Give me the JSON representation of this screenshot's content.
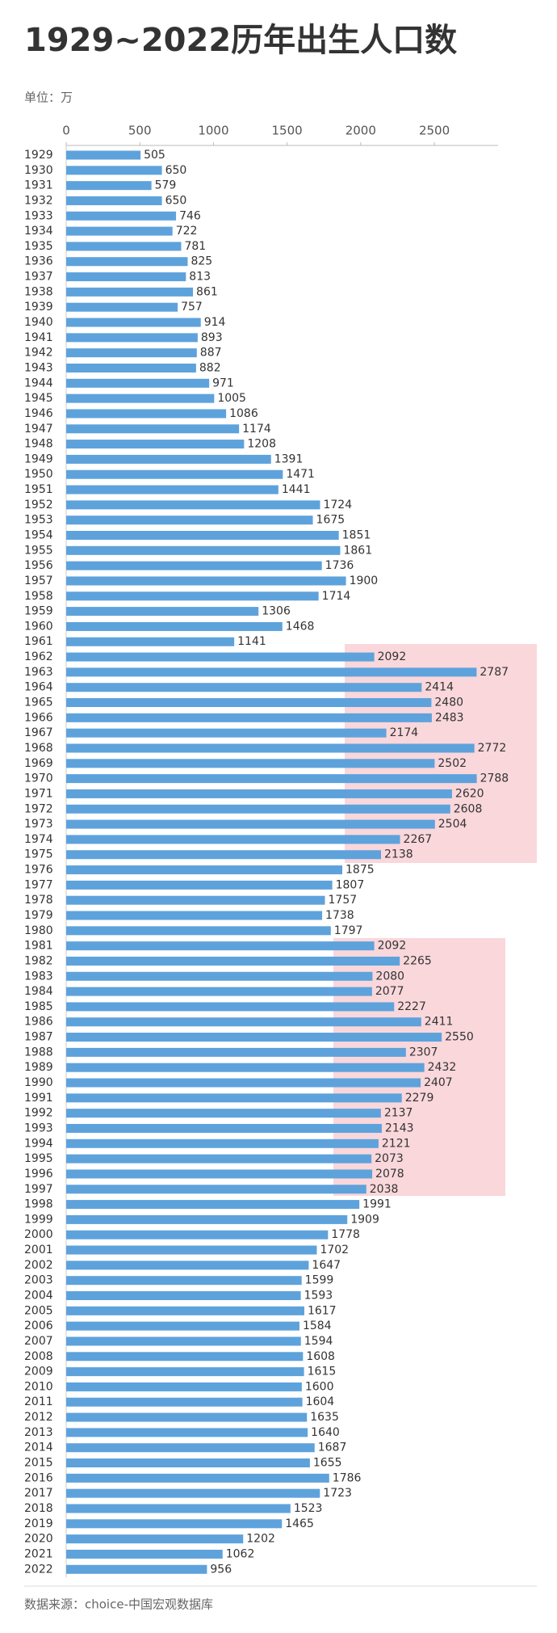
{
  "chart_data": {
    "type": "bar",
    "orientation": "horizontal",
    "title": "1929~2022历年出生人口数",
    "unit": "单位：万",
    "source": "数据来源：choice-中国宏观数据库",
    "color": "#5ea2dc",
    "grid": false,
    "xlim": [
      0,
      2900
    ],
    "xticks": [
      0,
      500,
      1000,
      1500,
      2000,
      2500
    ],
    "categories": [
      "1929",
      "1930",
      "1931",
      "1932",
      "1933",
      "1934",
      "1935",
      "1936",
      "1937",
      "1938",
      "1939",
      "1940",
      "1941",
      "1942",
      "1943",
      "1944",
      "1945",
      "1946",
      "1947",
      "1948",
      "1949",
      "1950",
      "1951",
      "1952",
      "1953",
      "1954",
      "1955",
      "1956",
      "1957",
      "1958",
      "1959",
      "1960",
      "1961",
      "1962",
      "1963",
      "1964",
      "1965",
      "1966",
      "1967",
      "1968",
      "1969",
      "1970",
      "1971",
      "1972",
      "1973",
      "1974",
      "1975",
      "1976",
      "1977",
      "1978",
      "1979",
      "1980",
      "1981",
      "1982",
      "1983",
      "1984",
      "1985",
      "1986",
      "1987",
      "1988",
      "1989",
      "1990",
      "1991",
      "1992",
      "1993",
      "1994",
      "1995",
      "1996",
      "1997",
      "1998",
      "1999",
      "2000",
      "2001",
      "2002",
      "2003",
      "2004",
      "2005",
      "2006",
      "2007",
      "2008",
      "2009",
      "2010",
      "2011",
      "2012",
      "2013",
      "2014",
      "2015",
      "2016",
      "2017",
      "2018",
      "2019",
      "2020",
      "2021",
      "2022"
    ],
    "values": [
      505,
      650,
      579,
      650,
      746,
      722,
      781,
      825,
      813,
      861,
      757,
      914,
      893,
      887,
      882,
      971,
      1005,
      1086,
      1174,
      1208,
      1391,
      1471,
      1441,
      1724,
      1675,
      1851,
      1861,
      1736,
      1900,
      1714,
      1306,
      1468,
      1141,
      2092,
      2787,
      2414,
      2480,
      2483,
      2174,
      2772,
      2502,
      2788,
      2620,
      2608,
      2504,
      2267,
      2138,
      1875,
      1807,
      1757,
      1738,
      1797,
      2092,
      2265,
      2080,
      2077,
      2227,
      2411,
      2550,
      2307,
      2432,
      2407,
      2279,
      2137,
      2143,
      2121,
      2073,
      2078,
      2038,
      1991,
      1909,
      1778,
      1702,
      1647,
      1599,
      1593,
      1617,
      1584,
      1594,
      1608,
      1615,
      1600,
      1604,
      1635,
      1640,
      1687,
      1655,
      1786,
      1723,
      1523,
      1465,
      1202,
      1062,
      956
    ]
  }
}
